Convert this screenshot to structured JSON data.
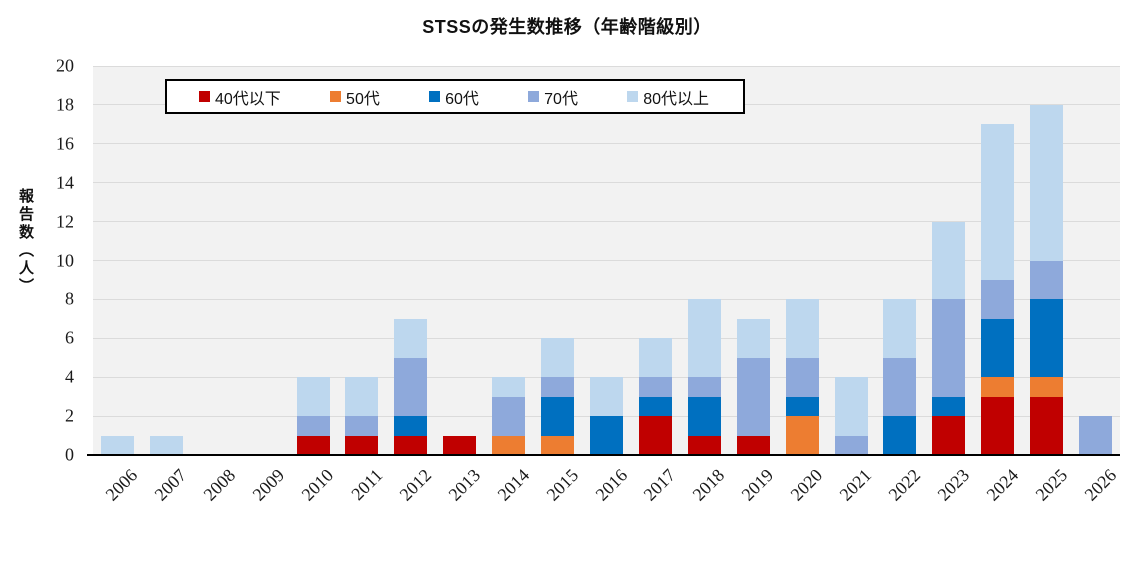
{
  "chart_data": {
    "type": "bar",
    "stacked": true,
    "title": "STSSの発生数推移（年齢階級別）",
    "ylabel": "報告数（人）",
    "xlabel": "",
    "ylim": [
      0,
      20
    ],
    "ytick_step": 2,
    "grid": true,
    "legend_position": "top-inside",
    "plot_bg_color": "#F2F2F2",
    "gridline_color": "#DBDBDB",
    "categories": [
      "2006",
      "2007",
      "2008",
      "2009",
      "2010",
      "2011",
      "2012",
      "2013",
      "2014",
      "2015",
      "2016",
      "2017",
      "2018",
      "2019",
      "2020",
      "2021",
      "2022",
      "2023",
      "2024",
      "2025",
      "2026"
    ],
    "series": [
      {
        "name": "40代以下",
        "color": "#C00000",
        "values": [
          0,
          0,
          0,
          0,
          1,
          1,
          1,
          1,
          0,
          0,
          0,
          2,
          1,
          1,
          0,
          0,
          0,
          2,
          3,
          3,
          0
        ]
      },
      {
        "name": "50代",
        "color": "#ED7D31",
        "values": [
          0,
          0,
          0,
          0,
          0,
          0,
          0,
          0,
          1,
          1,
          0,
          0,
          0,
          0,
          2,
          0,
          0,
          0,
          1,
          1,
          0
        ]
      },
      {
        "name": "60代",
        "color": "#0070C0",
        "values": [
          0,
          0,
          0,
          0,
          0,
          0,
          1,
          0,
          0,
          2,
          2,
          1,
          2,
          0,
          1,
          0,
          2,
          1,
          3,
          4,
          0
        ]
      },
      {
        "name": "70代",
        "color": "#8EA9DB",
        "values": [
          0,
          0,
          0,
          0,
          1,
          1,
          3,
          0,
          2,
          1,
          0,
          1,
          1,
          4,
          2,
          1,
          3,
          5,
          2,
          2,
          2
        ]
      },
      {
        "name": "80代以上",
        "color": "#BDD7EE",
        "values": [
          1,
          1,
          0,
          0,
          2,
          2,
          2,
          0,
          1,
          2,
          2,
          2,
          4,
          2,
          3,
          3,
          3,
          4,
          8,
          8,
          0
        ]
      }
    ],
    "totals": [
      1,
      1,
      0,
      0,
      4,
      4,
      7,
      1,
      4,
      6,
      4,
      6,
      8,
      7,
      8,
      4,
      8,
      12,
      17,
      18,
      2
    ]
  }
}
